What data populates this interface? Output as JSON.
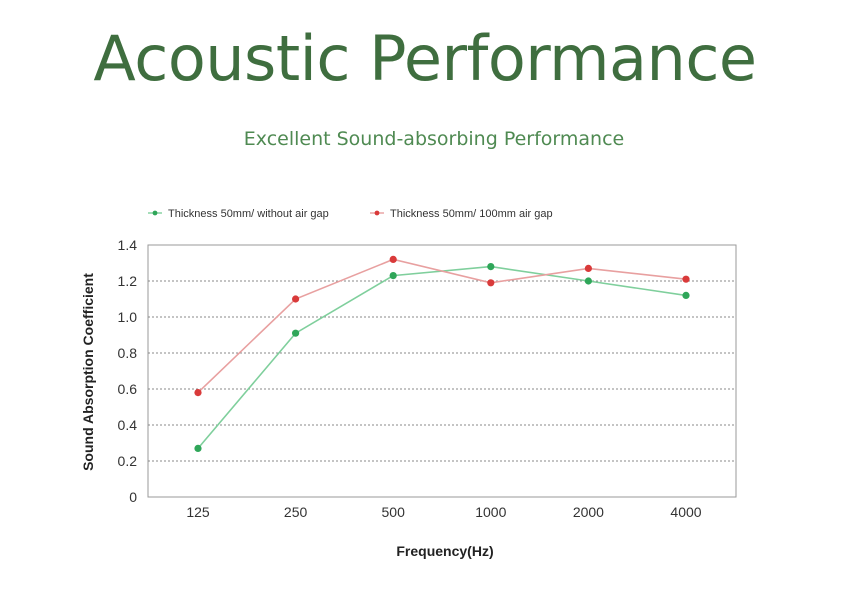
{
  "header": {
    "title": "Acoustic Performance",
    "subtitle": "Excellent Sound-absorbing Performance"
  },
  "colors": {
    "title": "#3f6e3f",
    "subtitle": "#4f8a52",
    "series_green": "#2fa659",
    "series_red": "#d93a3a",
    "line_green": "#7fcf9c",
    "line_red": "#e8a0a0"
  },
  "chart_data": {
    "type": "line",
    "categories": [
      "125",
      "250",
      "500",
      "1000",
      "2000",
      "4000"
    ],
    "series": [
      {
        "name": "Thickness 50mm/ without air gap",
        "color": "#2fa659",
        "line_color": "#7fcf9c",
        "values": [
          0.27,
          0.91,
          1.23,
          1.28,
          1.2,
          1.12
        ]
      },
      {
        "name": "Thickness 50mm/ 100mm air gap",
        "color": "#d93a3a",
        "line_color": "#e8a0a0",
        "values": [
          0.58,
          1.1,
          1.32,
          1.19,
          1.27,
          1.21
        ]
      }
    ],
    "xlabel": "Frequency(Hz)",
    "ylabel": "Sound Absorption Coefficient",
    "yticks": [
      "0",
      "0.2",
      "0.4",
      "0.6",
      "0.8",
      "1.0",
      "1.2",
      "1.4"
    ],
    "ylim": [
      0,
      1.4
    ],
    "grid": "horizontal dotted",
    "legend_position": "top-left"
  }
}
